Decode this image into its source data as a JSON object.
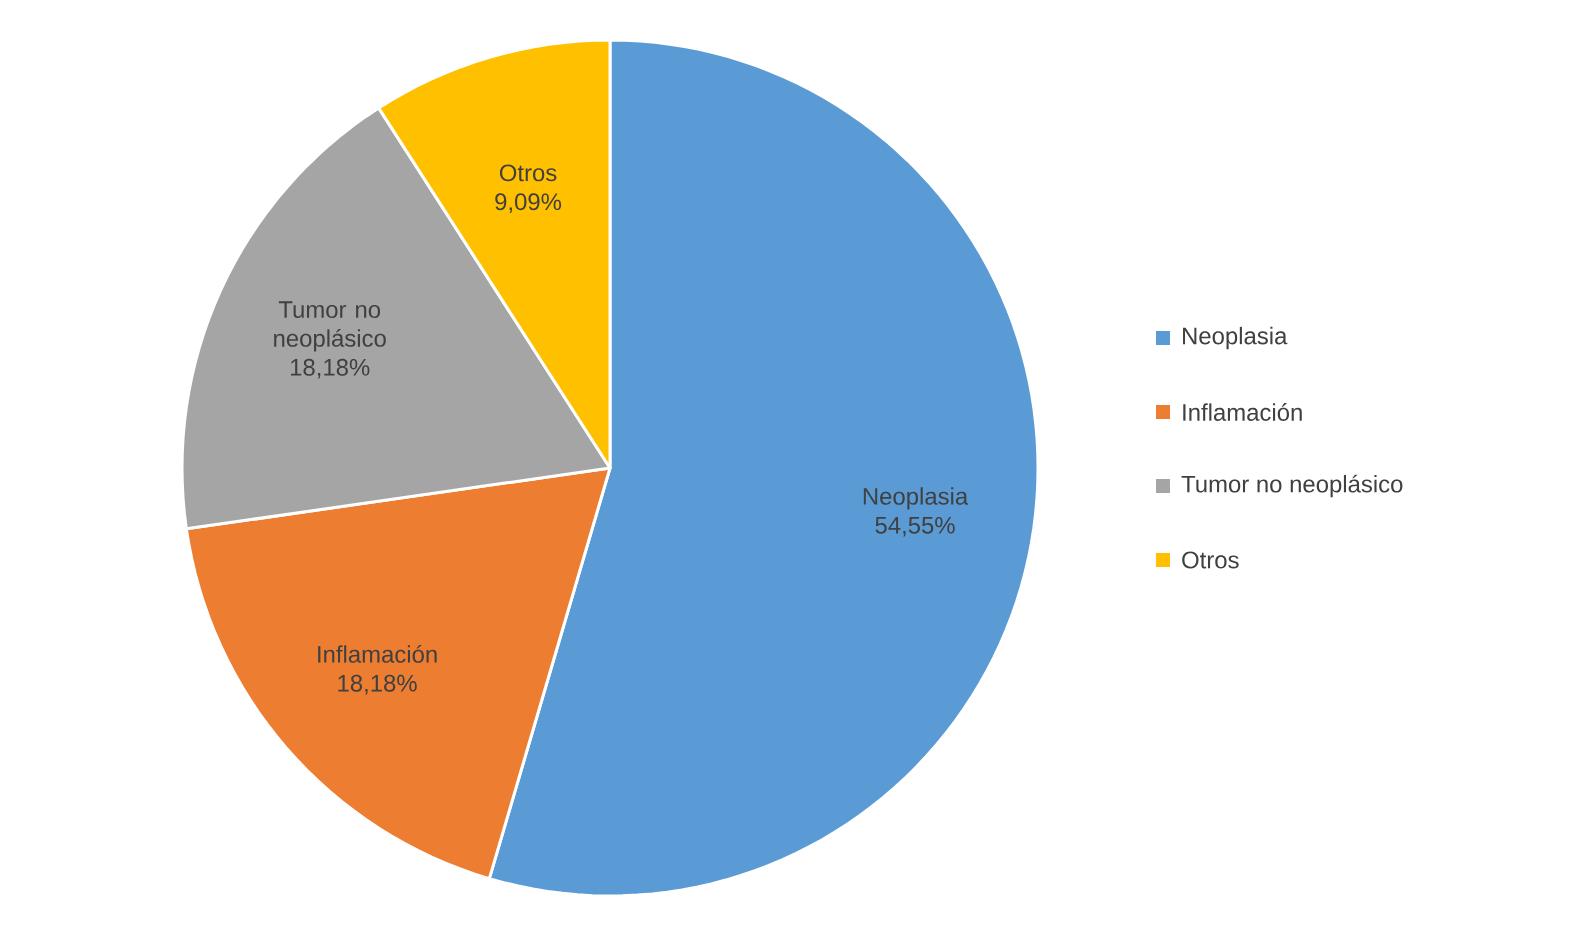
{
  "chart_data": {
    "type": "pie",
    "categories": [
      "Neoplasia",
      "Inflamación",
      "Tumor no neoplásico",
      "Otros"
    ],
    "values": [
      54.55,
      18.18,
      18.18,
      9.09
    ],
    "value_labels": [
      "54,55%",
      "18,18%",
      "18,18%",
      "9,09%"
    ],
    "colors": [
      "#5b9bd5",
      "#ed7d31",
      "#a5a5a5",
      "#ffc000"
    ],
    "legend": "right"
  }
}
